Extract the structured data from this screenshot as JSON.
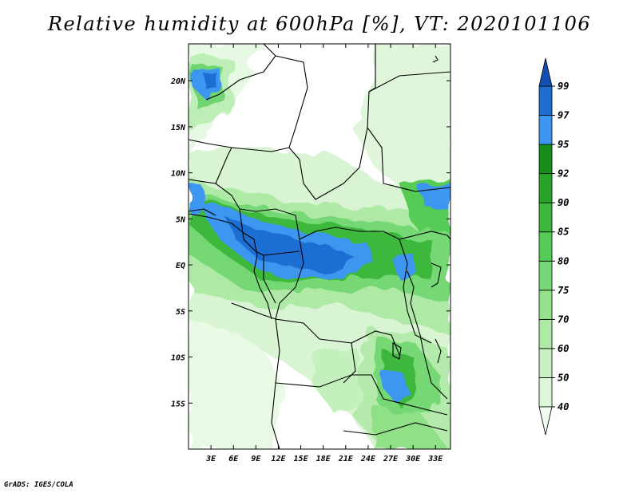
{
  "title": "Relative humidity at 600hPa [%], VT: 2020101106",
  "credit": "GrADS: IGES/COLA",
  "map": {
    "lon_range": [
      0,
      35
    ],
    "lat_range": [
      -20,
      24
    ],
    "y_ticks": [
      {
        "label": "20N",
        "lat": 20
      },
      {
        "label": "15N",
        "lat": 15
      },
      {
        "label": "10N",
        "lat": 10
      },
      {
        "label": "5N",
        "lat": 5
      },
      {
        "label": "EQ",
        "lat": 0
      },
      {
        "label": "5S",
        "lat": -5
      },
      {
        "label": "10S",
        "lat": -10
      },
      {
        "label": "15S",
        "lat": -15
      }
    ],
    "x_ticks": [
      {
        "label": "3E",
        "lon": 3
      },
      {
        "label": "6E",
        "lon": 6
      },
      {
        "label": "9E",
        "lon": 9
      },
      {
        "label": "12E",
        "lon": 12
      },
      {
        "label": "15E",
        "lon": 15
      },
      {
        "label": "18E",
        "lon": 18
      },
      {
        "label": "21E",
        "lon": 21
      },
      {
        "label": "24E",
        "lon": 24
      },
      {
        "label": "27E",
        "lon": 27
      },
      {
        "label": "30E",
        "lon": 30
      },
      {
        "label": "33E",
        "lon": 33
      }
    ]
  },
  "colorbar": {
    "levels": [
      "40",
      "50",
      "60",
      "70",
      "75",
      "80",
      "85",
      "90",
      "92",
      "95",
      "97",
      "99"
    ],
    "colors": [
      "#f0fcf0",
      "#dcf7d8",
      "#c8f0c0",
      "#aee9a6",
      "#94e28c",
      "#74d874",
      "#56cb56",
      "#3cb83c",
      "#28a428",
      "#188e18",
      "#3c96f0",
      "#1e6ed2",
      "#1450b4"
    ]
  }
}
